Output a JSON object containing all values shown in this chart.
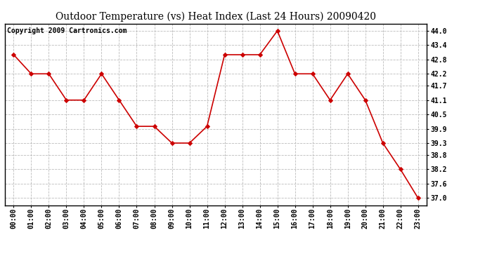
{
  "title": "Outdoor Temperature (vs) Heat Index (Last 24 Hours) 20090420",
  "copyright_text": "Copyright 2009 Cartronics.com",
  "x_labels": [
    "00:00",
    "01:00",
    "02:00",
    "03:00",
    "04:00",
    "05:00",
    "06:00",
    "07:00",
    "08:00",
    "09:00",
    "10:00",
    "11:00",
    "12:00",
    "13:00",
    "14:00",
    "15:00",
    "16:00",
    "17:00",
    "18:00",
    "19:00",
    "20:00",
    "21:00",
    "22:00",
    "23:00"
  ],
  "y_values": [
    43.0,
    42.2,
    42.2,
    41.1,
    41.1,
    42.2,
    41.1,
    40.0,
    40.0,
    39.3,
    39.3,
    40.0,
    43.0,
    43.0,
    43.0,
    44.0,
    42.2,
    42.2,
    41.1,
    42.2,
    41.1,
    39.3,
    38.2,
    37.0
  ],
  "line_color": "#cc0000",
  "marker_color": "#cc0000",
  "background_color": "#ffffff",
  "grid_color": "#bbbbbb",
  "yticks": [
    37.0,
    37.6,
    38.2,
    38.8,
    39.3,
    39.9,
    40.5,
    41.1,
    41.7,
    42.2,
    42.8,
    43.4,
    44.0
  ],
  "ylim": [
    36.7,
    44.3
  ],
  "title_fontsize": 10,
  "tick_fontsize": 7,
  "copyright_fontsize": 7
}
